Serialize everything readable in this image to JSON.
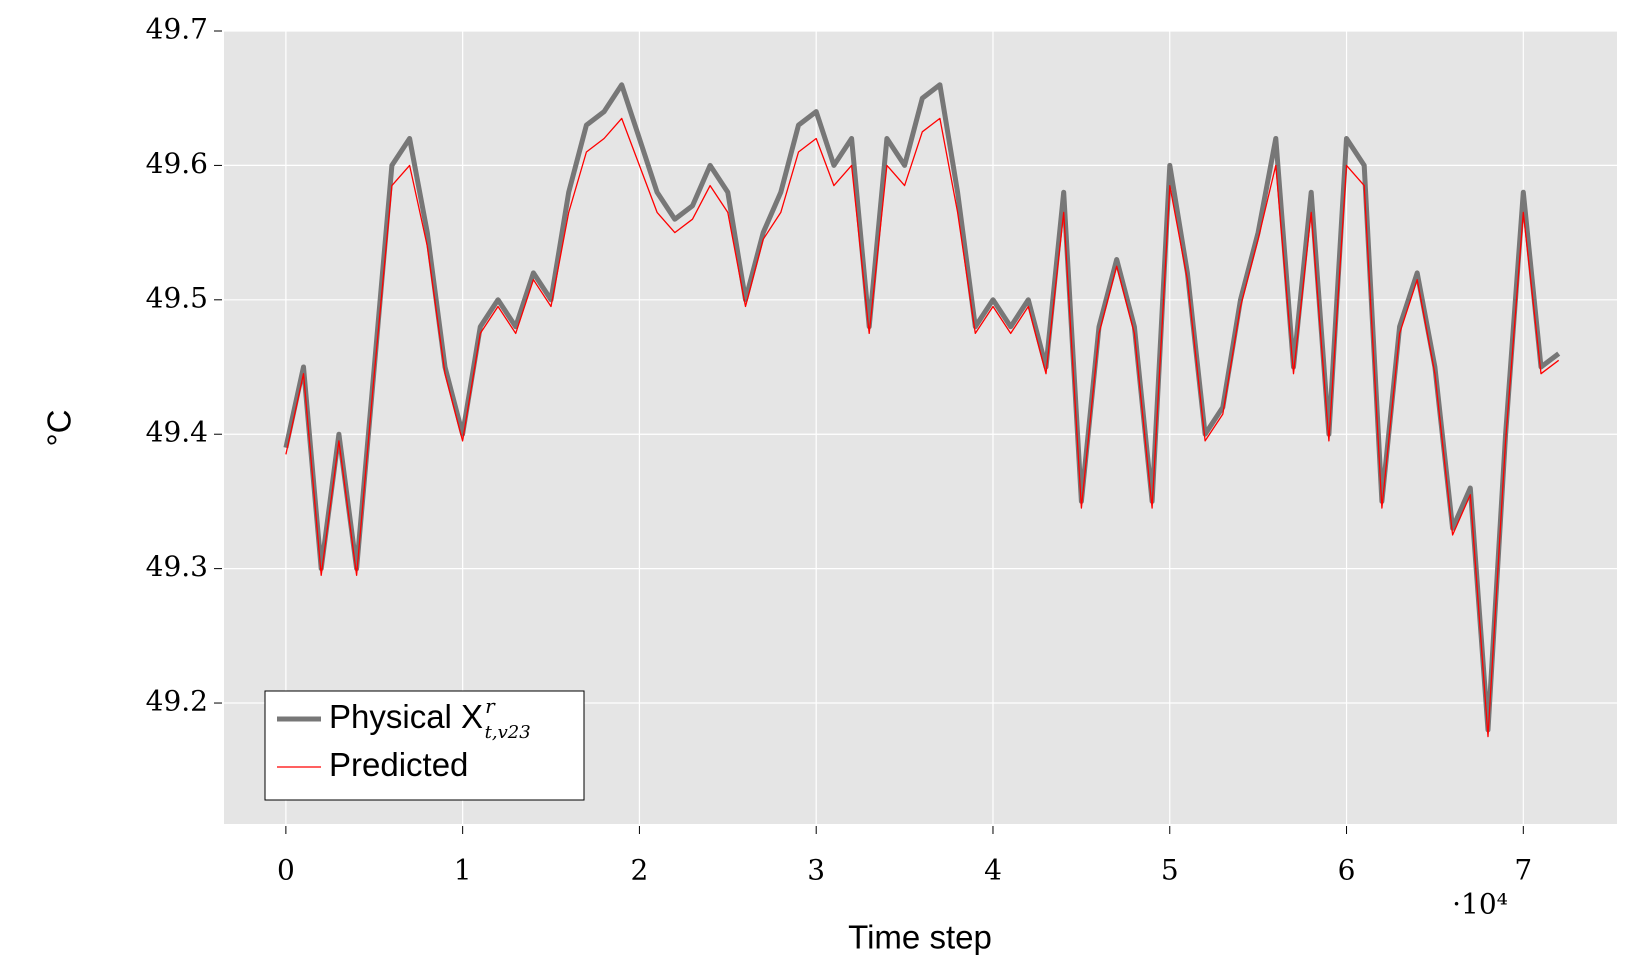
{
  "chart_data": {
    "type": "line",
    "xlabel": "Time step",
    "ylabel": "°C",
    "x_multiplier": "·10⁴",
    "x": [
      0,
      0.1,
      0.2,
      0.3,
      0.4,
      0.5,
      0.6,
      0.7,
      0.8,
      0.9,
      1,
      1.1,
      1.2,
      1.3,
      1.4,
      1.5,
      1.6,
      1.7,
      1.8,
      1.9,
      2,
      2.1,
      2.2,
      2.3,
      2.4,
      2.5,
      2.6,
      2.7,
      2.8,
      2.9,
      3,
      3.1,
      3.2,
      3.3,
      3.4,
      3.5,
      3.6,
      3.7,
      3.8,
      3.9,
      4,
      4.1,
      4.2,
      4.3,
      4.4,
      4.5,
      4.6,
      4.7,
      4.8,
      4.9,
      5,
      5.1,
      5.2,
      5.3,
      5.4,
      5.5,
      5.6,
      5.7,
      5.8,
      5.9,
      6,
      6.1,
      6.2,
      6.3,
      6.4,
      6.5,
      6.6,
      6.7,
      6.8,
      6.9,
      7,
      7.1,
      7.2
    ],
    "series": [
      {
        "name": "Physical X",
        "name_sup": "r",
        "name_sub": "t,v23",
        "color": "#777777",
        "values": [
          49.39,
          49.45,
          49.3,
          49.4,
          49.3,
          49.45,
          49.6,
          49.62,
          49.55,
          49.45,
          49.4,
          49.48,
          49.5,
          49.48,
          49.52,
          49.5,
          49.58,
          49.63,
          49.64,
          49.66,
          49.62,
          49.58,
          49.56,
          49.57,
          49.6,
          49.58,
          49.5,
          49.55,
          49.58,
          49.63,
          49.64,
          49.6,
          49.62,
          49.48,
          49.62,
          49.6,
          49.65,
          49.66,
          49.58,
          49.48,
          49.5,
          49.48,
          49.5,
          49.45,
          49.58,
          49.35,
          49.48,
          49.53,
          49.48,
          49.35,
          49.6,
          49.52,
          49.4,
          49.42,
          49.5,
          49.55,
          49.62,
          49.45,
          49.58,
          49.4,
          49.62,
          49.6,
          49.35,
          49.48,
          49.52,
          49.45,
          49.33,
          49.36,
          49.18,
          49.4,
          49.58,
          49.45,
          49.46
        ]
      },
      {
        "name": "Predicted",
        "color": "#ff0000",
        "values": [
          49.385,
          49.445,
          49.295,
          49.395,
          49.295,
          49.445,
          49.585,
          49.6,
          49.54,
          49.445,
          49.395,
          49.475,
          49.495,
          49.475,
          49.515,
          49.495,
          49.565,
          49.61,
          49.62,
          49.635,
          49.6,
          49.565,
          49.55,
          49.56,
          49.585,
          49.565,
          49.495,
          49.545,
          49.565,
          49.61,
          49.62,
          49.585,
          49.6,
          49.475,
          49.6,
          49.585,
          49.625,
          49.635,
          49.565,
          49.475,
          49.495,
          49.475,
          49.495,
          49.445,
          49.565,
          49.345,
          49.475,
          49.525,
          49.475,
          49.345,
          49.585,
          49.515,
          49.395,
          49.415,
          49.495,
          49.545,
          49.6,
          49.445,
          49.565,
          49.395,
          49.6,
          49.585,
          49.345,
          49.475,
          49.515,
          49.445,
          49.325,
          49.355,
          49.175,
          49.395,
          49.565,
          49.445,
          49.455
        ]
      }
    ],
    "xlim": [
      -0.35,
      7.53
    ],
    "ylim": [
      49.11,
      49.7
    ],
    "xticks": [
      0,
      1,
      2,
      3,
      4,
      5,
      6,
      7
    ],
    "yticks": [
      {
        "value": 49.2,
        "label": "49.2"
      },
      {
        "value": 49.3,
        "label": "49.3"
      },
      {
        "value": 49.4,
        "label": "49.4"
      },
      {
        "value": 49.5,
        "label": "49.5"
      },
      {
        "value": 49.6,
        "label": "49.6"
      },
      {
        "value": 49.7,
        "label": "49.7"
      }
    ],
    "grid": true,
    "legend": "lower left"
  }
}
